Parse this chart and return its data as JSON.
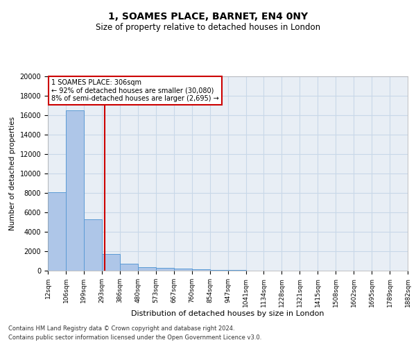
{
  "title_line1": "1, SOAMES PLACE, BARNET, EN4 0NY",
  "title_line2": "Size of property relative to detached houses in London",
  "xlabel": "Distribution of detached houses by size in London",
  "ylabel": "Number of detached properties",
  "bar_values": [
    8100,
    16500,
    5300,
    1750,
    700,
    350,
    280,
    200,
    150,
    100,
    60,
    35,
    15,
    10,
    8,
    5,
    3,
    2,
    2,
    1
  ],
  "bin_edges": [
    12,
    106,
    199,
    293,
    386,
    480,
    573,
    667,
    760,
    854,
    947,
    1041,
    1134,
    1228,
    1321,
    1415,
    1508,
    1602,
    1695,
    1789,
    1882
  ],
  "x_tick_labels": [
    "12sqm",
    "106sqm",
    "199sqm",
    "293sqm",
    "386sqm",
    "480sqm",
    "573sqm",
    "667sqm",
    "760sqm",
    "854sqm",
    "947sqm",
    "1041sqm",
    "1134sqm",
    "1228sqm",
    "1321sqm",
    "1415sqm",
    "1508sqm",
    "1602sqm",
    "1695sqm",
    "1789sqm",
    "1882sqm"
  ],
  "bar_color": "#aec6e8",
  "bar_edge_color": "#5b9bd5",
  "grid_color": "#c8d8e8",
  "vline_x": 306,
  "vline_color": "#cc0000",
  "annotation_line1": "1 SOAMES PLACE: 306sqm",
  "annotation_line2": "← 92% of detached houses are smaller (30,080)",
  "annotation_line3": "8% of semi-detached houses are larger (2,695) →",
  "annotation_box_color": "#cc0000",
  "ylim": [
    0,
    20000
  ],
  "yticks": [
    0,
    2000,
    4000,
    6000,
    8000,
    10000,
    12000,
    14000,
    16000,
    18000,
    20000
  ],
  "footer_line1": "Contains HM Land Registry data © Crown copyright and database right 2024.",
  "footer_line2": "Contains public sector information licensed under the Open Government Licence v3.0.",
  "background_color": "#ffffff",
  "plot_bg_color": "#e8eef5"
}
